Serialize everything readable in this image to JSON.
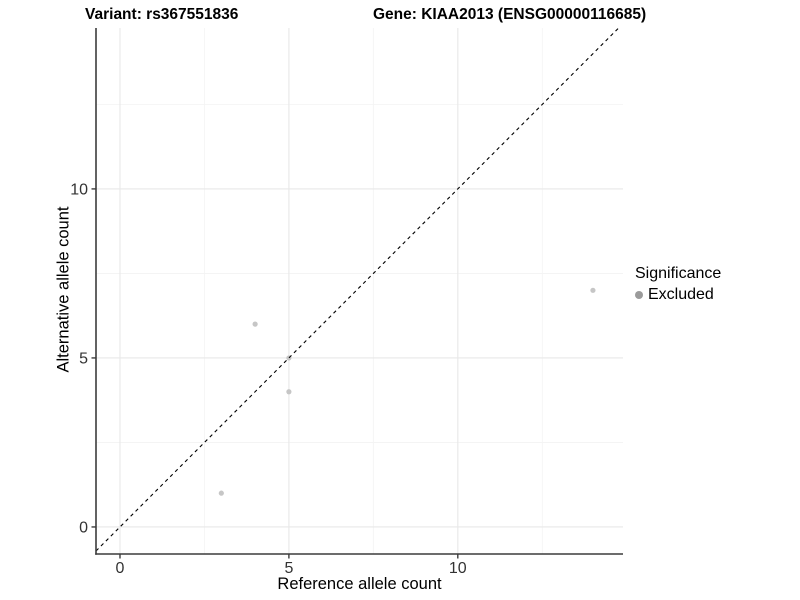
{
  "header": {
    "variant_title": "Variant: rs367551836",
    "gene_title": "Gene: KIAA2013 (ENSG00000116685)"
  },
  "legend": {
    "title": "Significance",
    "items": [
      {
        "label": "Excluded",
        "color": "#9b9b9b"
      }
    ]
  },
  "chart_data": {
    "type": "scatter",
    "xlabel": "Reference allele count",
    "ylabel": "Alternative allele count",
    "series": [
      {
        "name": "Excluded",
        "color": "#c6c6c6",
        "points": [
          {
            "x": 3,
            "y": 1
          },
          {
            "x": 4,
            "y": 6
          },
          {
            "x": 5,
            "y": 4
          },
          {
            "x": 5,
            "y": 5
          },
          {
            "x": 14,
            "y": 7
          }
        ]
      }
    ],
    "reference_line": {
      "type": "identity",
      "slope": 1,
      "intercept": 0,
      "style": "dashed",
      "color": "#000000"
    },
    "xlim": [
      -0.71,
      14.89
    ],
    "ylim": [
      -0.8,
      14.76
    ],
    "x_ticks": [
      0,
      5,
      10
    ],
    "y_ticks": [
      0,
      5,
      10
    ],
    "minor_ticks": [
      2.5,
      7.5,
      12.5
    ],
    "grid": true,
    "legend_position": "right"
  },
  "colors": {
    "major_grid": "#e8e8e8",
    "minor_grid": "#f3f3f3",
    "axis_line": "#3c3c3c",
    "tick_label": "#333333"
  }
}
